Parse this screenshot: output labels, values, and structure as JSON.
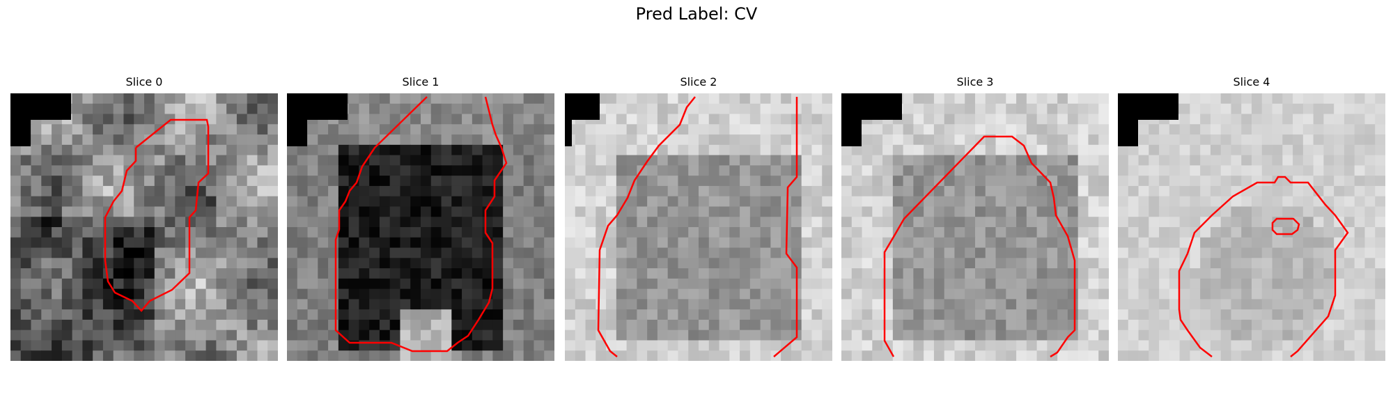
{
  "figure": {
    "title": "Pred Label: CV"
  },
  "panels": [
    {
      "title": "Slice 0",
      "tone": "mixed"
    },
    {
      "title": "Slice 1",
      "tone": "dark"
    },
    {
      "title": "Slice 2",
      "tone": "light"
    },
    {
      "title": "Slice 3",
      "tone": "light"
    },
    {
      "title": "Slice 4",
      "tone": "verylight"
    }
  ],
  "colors": {
    "contour": "#ff0000",
    "background": "#ffffff"
  }
}
